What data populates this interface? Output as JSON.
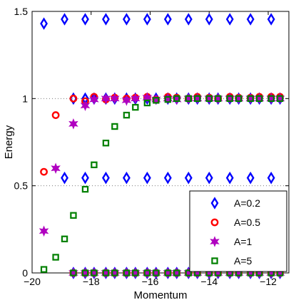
{
  "chart_data": {
    "type": "scatter",
    "xlabel": "Momentum",
    "ylabel": "Energy",
    "xlim": [
      -20,
      -11.3
    ],
    "ylim": [
      0,
      1.5
    ],
    "xticks": [
      -20,
      -18,
      -16,
      -14,
      -12
    ],
    "xtick_labels": [
      "−20",
      "−18",
      "−16",
      "−14",
      "−12"
    ],
    "yticks": [
      0,
      0.5,
      1,
      1.5
    ],
    "ytick_labels": [
      "0",
      "0.5",
      "1",
      "1.5"
    ],
    "gridlines_y": [
      0.5,
      1
    ],
    "legend_position": "bottom-right",
    "series": [
      {
        "name": "A=0.2",
        "marker": "diamond",
        "color": "#0000ff",
        "points": [
          [
            -19.6,
            1.43
          ],
          [
            -18.9,
            1.455
          ],
          [
            -18.2,
            1.455
          ],
          [
            -17.5,
            1.455
          ],
          [
            -16.8,
            1.455
          ],
          [
            -16.1,
            1.455
          ],
          [
            -15.4,
            1.455
          ],
          [
            -14.7,
            1.455
          ],
          [
            -14.0,
            1.455
          ],
          [
            -13.3,
            1.455
          ],
          [
            -12.6,
            1.455
          ],
          [
            -11.9,
            1.455
          ],
          [
            -18.9,
            0.545
          ],
          [
            -18.2,
            0.545
          ],
          [
            -17.5,
            0.545
          ],
          [
            -16.8,
            0.545
          ],
          [
            -16.1,
            0.545
          ],
          [
            -15.4,
            0.545
          ],
          [
            -14.7,
            0.545
          ],
          [
            -14.0,
            0.545
          ],
          [
            -13.3,
            0.545
          ],
          [
            -12.6,
            0.545
          ],
          [
            -11.9,
            0.545
          ],
          [
            -18.6,
            1.0
          ],
          [
            -18.2,
            1.0
          ],
          [
            -17.9,
            1.0
          ],
          [
            -17.5,
            1.0
          ],
          [
            -17.2,
            1.0
          ],
          [
            -16.8,
            1.0
          ],
          [
            -16.5,
            1.0
          ],
          [
            -16.1,
            1.0
          ],
          [
            -15.8,
            1.0
          ],
          [
            -15.4,
            1.0
          ],
          [
            -15.1,
            1.0
          ],
          [
            -14.7,
            1.0
          ],
          [
            -14.4,
            1.0
          ],
          [
            -14.0,
            1.0
          ],
          [
            -13.7,
            1.0
          ],
          [
            -13.3,
            1.0
          ],
          [
            -13.0,
            1.0
          ],
          [
            -12.6,
            1.0
          ],
          [
            -12.3,
            1.0
          ],
          [
            -11.9,
            1.0
          ],
          [
            -11.6,
            1.0
          ],
          [
            -18.6,
            0.0
          ],
          [
            -18.2,
            0.0
          ],
          [
            -17.9,
            0.0
          ],
          [
            -17.5,
            0.0
          ],
          [
            -17.2,
            0.0
          ],
          [
            -16.8,
            0.0
          ],
          [
            -16.5,
            0.0
          ],
          [
            -16.1,
            0.0
          ],
          [
            -15.8,
            0.0
          ],
          [
            -15.4,
            0.0
          ],
          [
            -15.1,
            0.0
          ],
          [
            -14.7,
            0.0
          ],
          [
            -14.4,
            0.0
          ],
          [
            -14.0,
            0.0
          ],
          [
            -13.7,
            0.0
          ],
          [
            -13.3,
            0.0
          ],
          [
            -13.0,
            0.0
          ],
          [
            -12.6,
            0.0
          ],
          [
            -12.3,
            0.0
          ],
          [
            -11.9,
            0.0
          ],
          [
            -11.6,
            0.0
          ]
        ]
      },
      {
        "name": "A=0.5",
        "marker": "circle",
        "color": "#ff0000",
        "points": [
          [
            -19.6,
            0.58
          ],
          [
            -19.2,
            0.905
          ],
          [
            -18.6,
            1.0
          ],
          [
            -18.2,
            0.985
          ],
          [
            -17.9,
            1.01
          ],
          [
            -17.5,
            0.995
          ],
          [
            -17.2,
            1.005
          ],
          [
            -16.8,
            1.0
          ],
          [
            -16.5,
            1.005
          ],
          [
            -16.1,
            1.01
          ],
          [
            -15.8,
            0.995
          ],
          [
            -15.4,
            1.01
          ],
          [
            -15.1,
            1.005
          ],
          [
            -14.7,
            1.0
          ],
          [
            -14.4,
            1.01
          ],
          [
            -14.0,
            1.005
          ],
          [
            -13.7,
            1.0
          ],
          [
            -13.3,
            1.01
          ],
          [
            -13.0,
            1.005
          ],
          [
            -12.6,
            1.005
          ],
          [
            -12.3,
            1.01
          ],
          [
            -11.9,
            1.01
          ],
          [
            -11.6,
            1.01
          ],
          [
            -18.6,
            0.0
          ],
          [
            -18.2,
            0.0
          ],
          [
            -17.9,
            0.0
          ],
          [
            -17.5,
            0.0
          ],
          [
            -17.2,
            0.0
          ],
          [
            -16.8,
            0.0
          ],
          [
            -16.5,
            0.0
          ],
          [
            -16.1,
            0.0
          ],
          [
            -15.8,
            0.0
          ],
          [
            -15.4,
            0.0
          ],
          [
            -15.1,
            0.0
          ],
          [
            -14.7,
            0.0
          ],
          [
            -14.4,
            0.0
          ],
          [
            -14.0,
            0.0
          ],
          [
            -13.7,
            0.0
          ],
          [
            -13.3,
            0.0
          ],
          [
            -13.0,
            0.0
          ],
          [
            -12.6,
            0.0
          ],
          [
            -12.3,
            0.0
          ],
          [
            -11.9,
            0.0
          ],
          [
            -11.6,
            0.0
          ]
        ]
      },
      {
        "name": "A=1",
        "marker": "star",
        "color": "#b000c0",
        "points": [
          [
            -19.6,
            0.24
          ],
          [
            -19.2,
            0.6
          ],
          [
            -18.6,
            0.855
          ],
          [
            -18.2,
            0.96
          ],
          [
            -17.9,
            0.995
          ],
          [
            -17.5,
            1.0
          ],
          [
            -17.2,
            1.0
          ],
          [
            -16.8,
            0.99
          ],
          [
            -16.5,
            1.0
          ],
          [
            -16.1,
            1.005
          ],
          [
            -15.8,
            0.995
          ],
          [
            -15.4,
            1.0
          ],
          [
            -15.1,
            0.995
          ],
          [
            -14.7,
            1.0
          ],
          [
            -14.4,
            1.0
          ],
          [
            -14.0,
            1.0
          ],
          [
            -13.7,
            1.0
          ],
          [
            -13.3,
            1.0
          ],
          [
            -13.0,
            1.0
          ],
          [
            -12.6,
            1.0
          ],
          [
            -12.3,
            1.0
          ],
          [
            -11.9,
            1.0
          ],
          [
            -11.6,
            1.0
          ],
          [
            -18.6,
            0.0
          ],
          [
            -18.2,
            0.0
          ],
          [
            -17.9,
            0.0
          ],
          [
            -17.5,
            0.0
          ],
          [
            -17.2,
            0.0
          ],
          [
            -16.8,
            0.0
          ],
          [
            -16.5,
            0.0
          ],
          [
            -16.1,
            0.0
          ],
          [
            -15.8,
            0.0
          ],
          [
            -15.4,
            0.0
          ],
          [
            -15.1,
            0.0
          ],
          [
            -14.7,
            0.0
          ],
          [
            -14.4,
            0.0
          ],
          [
            -14.0,
            0.0
          ],
          [
            -13.7,
            0.0
          ],
          [
            -13.3,
            0.0
          ],
          [
            -13.0,
            0.0
          ],
          [
            -12.6,
            0.0
          ],
          [
            -12.3,
            0.0
          ],
          [
            -11.9,
            0.0
          ],
          [
            -11.6,
            0.0
          ]
        ]
      },
      {
        "name": "A=5",
        "marker": "square",
        "color": "#008000",
        "points": [
          [
            -19.6,
            0.02
          ],
          [
            -19.2,
            0.09
          ],
          [
            -18.9,
            0.195
          ],
          [
            -18.6,
            0.33
          ],
          [
            -18.2,
            0.48
          ],
          [
            -17.9,
            0.62
          ],
          [
            -17.5,
            0.745
          ],
          [
            -17.2,
            0.84
          ],
          [
            -16.8,
            0.905
          ],
          [
            -16.5,
            0.95
          ],
          [
            -16.1,
            0.975
          ],
          [
            -15.8,
            0.99
          ],
          [
            -15.4,
            0.995
          ],
          [
            -15.1,
            1.0
          ],
          [
            -14.7,
            1.0
          ],
          [
            -14.4,
            1.0
          ],
          [
            -14.0,
            1.0
          ],
          [
            -13.7,
            1.0
          ],
          [
            -13.3,
            1.0
          ],
          [
            -13.0,
            1.0
          ],
          [
            -12.6,
            1.0
          ],
          [
            -12.3,
            1.0
          ],
          [
            -11.9,
            1.0
          ],
          [
            -11.6,
            1.0
          ],
          [
            -18.6,
            0.0
          ],
          [
            -18.2,
            0.0
          ],
          [
            -17.9,
            0.0
          ],
          [
            -17.5,
            0.0
          ],
          [
            -17.2,
            0.0
          ],
          [
            -16.8,
            0.0
          ],
          [
            -16.5,
            0.0
          ],
          [
            -16.1,
            0.0
          ],
          [
            -15.8,
            0.0
          ],
          [
            -15.4,
            0.0
          ],
          [
            -15.1,
            0.0
          ],
          [
            -14.7,
            0.0
          ],
          [
            -14.4,
            0.0
          ],
          [
            -14.0,
            0.0
          ],
          [
            -13.7,
            0.0
          ],
          [
            -13.3,
            0.0
          ],
          [
            -13.0,
            0.0
          ],
          [
            -12.6,
            0.0
          ],
          [
            -12.3,
            0.0
          ],
          [
            -11.9,
            0.0
          ],
          [
            -11.6,
            0.0
          ]
        ]
      }
    ]
  }
}
